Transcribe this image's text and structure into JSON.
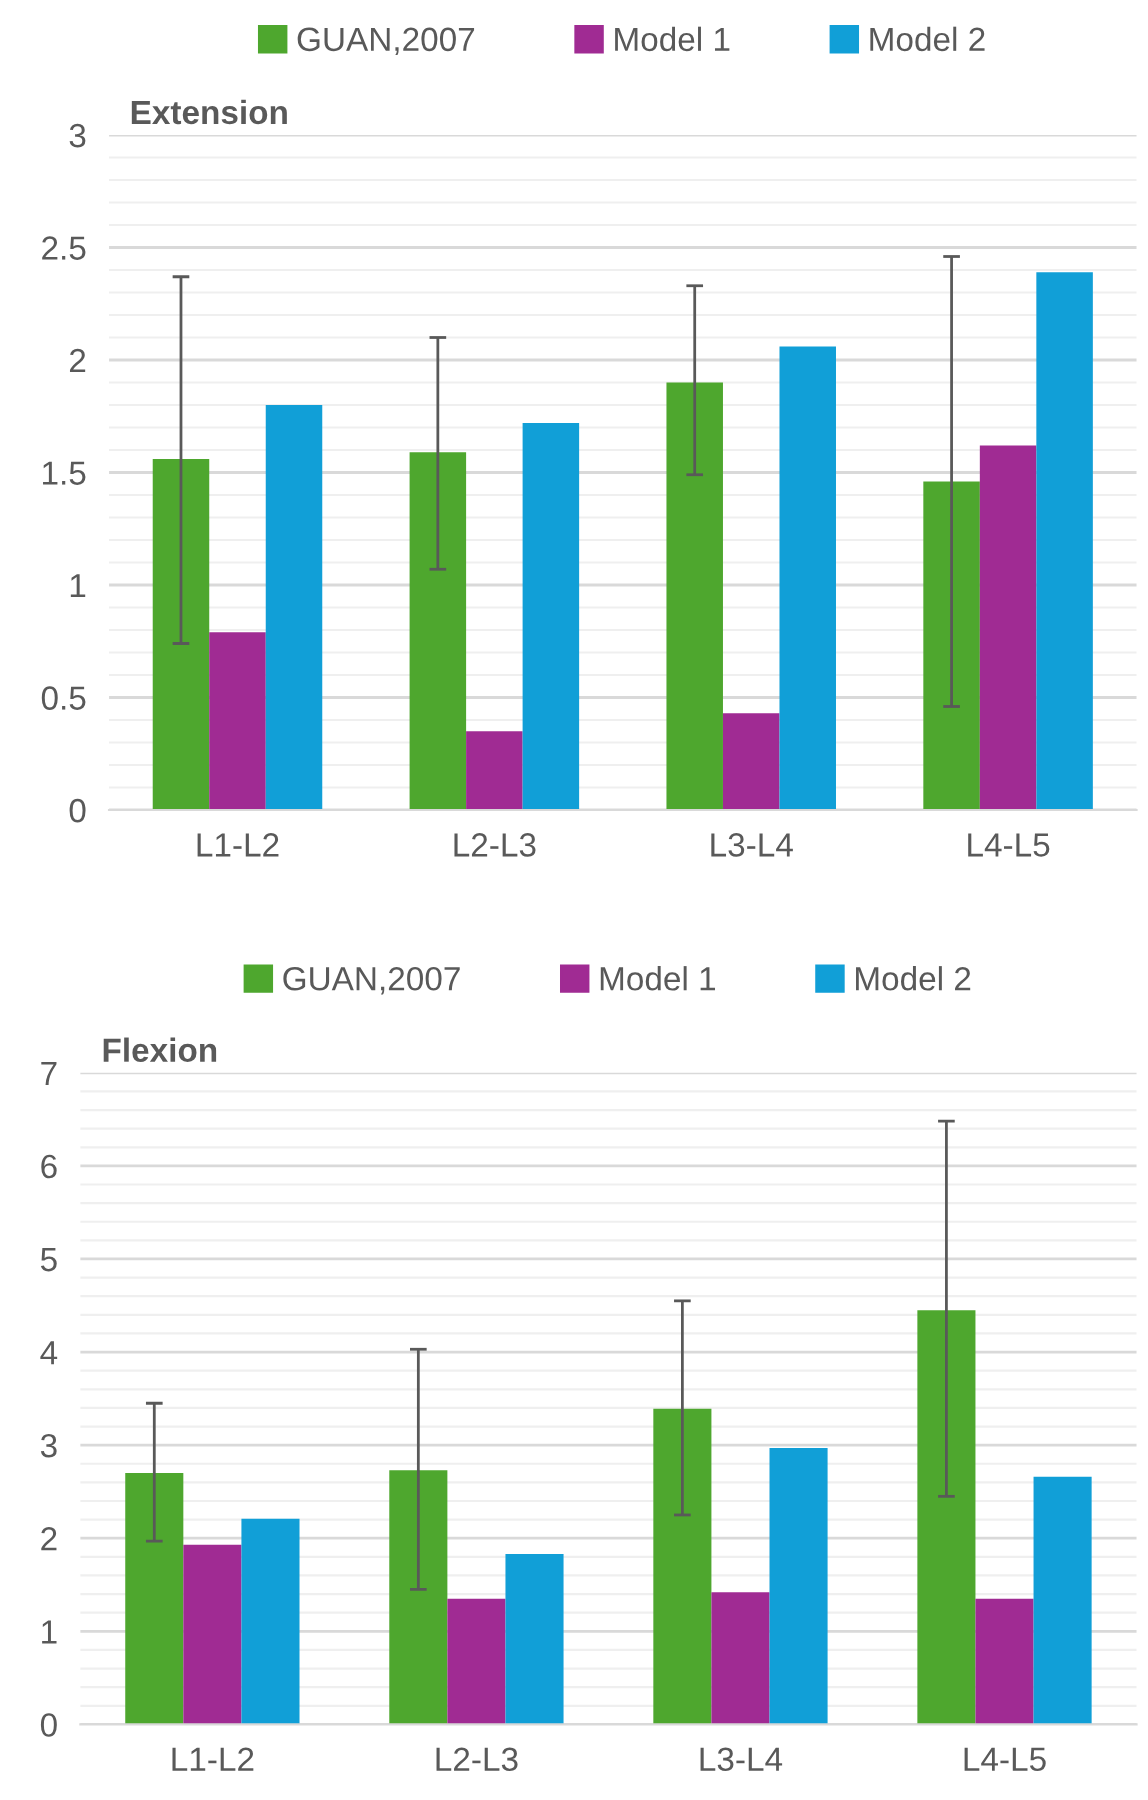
{
  "chart_data": [
    {
      "type": "bar",
      "title": "Extension",
      "categories": [
        "L1-L2",
        "L2-L3",
        "L3-L4",
        "L4-L5"
      ],
      "series": [
        {
          "name": "GUAN,2007",
          "color": "#4ea72e",
          "values": [
            1.56,
            1.59,
            1.9,
            1.46
          ],
          "errors": [
            [
              0.74,
              2.37
            ],
            [
              1.07,
              2.1
            ],
            [
              1.49,
              2.33
            ],
            [
              0.46,
              2.46
            ]
          ]
        },
        {
          "name": "Model 1",
          "color": "#a02b93",
          "values": [
            0.79,
            0.35,
            0.43,
            1.62
          ]
        },
        {
          "name": "Model 2",
          "color": "#119fd7",
          "values": [
            1.8,
            1.72,
            2.06,
            2.39
          ]
        }
      ],
      "ylim": [
        0,
        3
      ],
      "yticks": [
        0,
        0.5,
        1,
        1.5,
        2,
        2.5,
        3
      ],
      "grid": "y",
      "legend": "top"
    },
    {
      "type": "bar",
      "title": "Flexion",
      "categories": [
        "L1-L2",
        "L2-L3",
        "L3-L4",
        "L4-L5"
      ],
      "series": [
        {
          "name": "GUAN,2007",
          "color": "#4ea72e",
          "values": [
            2.7,
            2.73,
            3.39,
            4.45
          ],
          "errors": [
            [
              1.97,
              3.45
            ],
            [
              1.45,
              4.03
            ],
            [
              2.25,
              4.55
            ],
            [
              2.45,
              6.48
            ]
          ]
        },
        {
          "name": "Model 1",
          "color": "#a02b93",
          "values": [
            1.93,
            1.35,
            1.42,
            1.35
          ]
        },
        {
          "name": "Model 2",
          "color": "#119fd7",
          "values": [
            2.21,
            1.83,
            2.97,
            2.66
          ]
        }
      ],
      "ylim": [
        0,
        7
      ],
      "yticks": [
        0,
        1,
        2,
        3,
        4,
        5,
        6,
        7
      ],
      "grid": "y",
      "legend": "top"
    }
  ]
}
